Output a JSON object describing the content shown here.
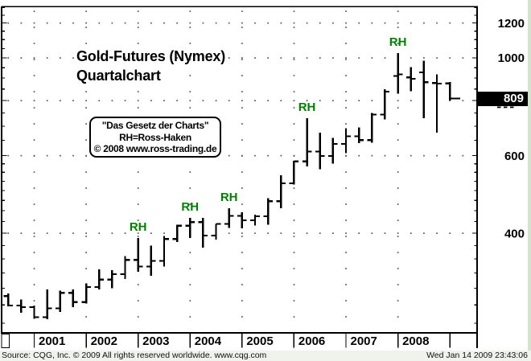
{
  "title": {
    "line1": "Gold-Futures (Nymex)",
    "line2": "Quartalchart"
  },
  "info_box": {
    "line1": "\"Das Gesetz der Charts\"",
    "line2": "RH=Ross-Haken",
    "line3": "© 2008 www.ross-trading.de"
  },
  "price_box": {
    "value": "809",
    "bg": "#000000",
    "fg": "#ffffff"
  },
  "footer": {
    "source": "Source: CQG, Inc. © 2009 All rights reserved worldwide. www.cqg.com",
    "timestamp": "Wed Jan 14 2009 23:43:06"
  },
  "colors": {
    "bar": "#000000",
    "ross_hook_label": "#008000",
    "axis": "#000000",
    "grid_dot": "#555555",
    "footer_bg": "#eff3ec",
    "edge_strip": "#d5e3cf"
  },
  "chart_data": {
    "type": "ohlc-bar",
    "title": "Gold-Futures (Nymex) Quartalchart",
    "timeframe": "quarterly",
    "y_scale": "log",
    "grid": "dotted",
    "legend_position": "none",
    "ross_hook_marker": "RH",
    "last_price": 809,
    "y_axis_labels": [
      1200,
      1000,
      600,
      400
    ],
    "x_axis_years": [
      "2001",
      "2002",
      "2003",
      "2004",
      "2005",
      "2006",
      "2007",
      "2008"
    ],
    "bars": [
      {
        "period": "2000-Q3",
        "open": 288,
        "high": 292,
        "low": 273,
        "close": 274,
        "ross_hook": false
      },
      {
        "period": "2000-Q4",
        "open": 274,
        "high": 283,
        "low": 264,
        "close": 272,
        "ross_hook": false
      },
      {
        "period": "2001-Q1",
        "open": 272,
        "high": 274,
        "low": 256,
        "close": 258,
        "ross_hook": false
      },
      {
        "period": "2001-Q2",
        "open": 258,
        "high": 298,
        "low": 255,
        "close": 270,
        "ross_hook": false
      },
      {
        "period": "2001-Q3",
        "open": 270,
        "high": 296,
        "low": 265,
        "close": 293,
        "ross_hook": false
      },
      {
        "period": "2001-Q4",
        "open": 293,
        "high": 298,
        "low": 272,
        "close": 279,
        "ross_hook": false
      },
      {
        "period": "2002-Q1",
        "open": 279,
        "high": 308,
        "low": 277,
        "close": 302,
        "ross_hook": false
      },
      {
        "period": "2002-Q2",
        "open": 302,
        "high": 331,
        "low": 298,
        "close": 314,
        "ross_hook": false
      },
      {
        "period": "2002-Q3",
        "open": 314,
        "high": 330,
        "low": 300,
        "close": 323,
        "ross_hook": false
      },
      {
        "period": "2002-Q4",
        "open": 323,
        "high": 355,
        "low": 315,
        "close": 348,
        "ross_hook": false
      },
      {
        "period": "2003-Q1",
        "open": 348,
        "high": 390,
        "low": 327,
        "close": 336,
        "ross_hook": true
      },
      {
        "period": "2003-Q2",
        "open": 336,
        "high": 375,
        "low": 320,
        "close": 346,
        "ross_hook": false
      },
      {
        "period": "2003-Q3",
        "open": 346,
        "high": 394,
        "low": 336,
        "close": 388,
        "ross_hook": false
      },
      {
        "period": "2003-Q4",
        "open": 388,
        "high": 418,
        "low": 382,
        "close": 416,
        "ross_hook": false
      },
      {
        "period": "2004-Q1",
        "open": 416,
        "high": 433,
        "low": 390,
        "close": 424,
        "ross_hook": true
      },
      {
        "period": "2004-Q2",
        "open": 424,
        "high": 433,
        "low": 371,
        "close": 395,
        "ross_hook": false
      },
      {
        "period": "2004-Q3",
        "open": 395,
        "high": 420,
        "low": 387,
        "close": 420,
        "ross_hook": false
      },
      {
        "period": "2004-Q4",
        "open": 420,
        "high": 456,
        "low": 411,
        "close": 438,
        "ross_hook": true
      },
      {
        "period": "2005-Q1",
        "open": 438,
        "high": 446,
        "low": 410,
        "close": 428,
        "ross_hook": false
      },
      {
        "period": "2005-Q2",
        "open": 428,
        "high": 441,
        "low": 416,
        "close": 437,
        "ross_hook": false
      },
      {
        "period": "2005-Q3",
        "open": 437,
        "high": 480,
        "low": 418,
        "close": 473,
        "ross_hook": false
      },
      {
        "period": "2005-Q4",
        "open": 473,
        "high": 541,
        "low": 456,
        "close": 519,
        "ross_hook": false
      },
      {
        "period": "2006-Q1",
        "open": 519,
        "high": 584,
        "low": 516,
        "close": 582,
        "ross_hook": false
      },
      {
        "period": "2006-Q2",
        "open": 582,
        "high": 730,
        "low": 567,
        "close": 613,
        "ross_hook": true
      },
      {
        "period": "2006-Q3",
        "open": 613,
        "high": 676,
        "low": 559,
        "close": 599,
        "ross_hook": false
      },
      {
        "period": "2006-Q4",
        "open": 599,
        "high": 658,
        "low": 576,
        "close": 638,
        "ross_hook": false
      },
      {
        "period": "2007-Q1",
        "open": 638,
        "high": 692,
        "low": 608,
        "close": 664,
        "ross_hook": false
      },
      {
        "period": "2007-Q2",
        "open": 664,
        "high": 695,
        "low": 640,
        "close": 651,
        "ross_hook": false
      },
      {
        "period": "2007-Q3",
        "open": 651,
        "high": 750,
        "low": 642,
        "close": 744,
        "ross_hook": false
      },
      {
        "period": "2007-Q4",
        "open": 744,
        "high": 848,
        "low": 725,
        "close": 838,
        "ross_hook": false
      },
      {
        "period": "2008-Q1",
        "open": 910,
        "high": 1025,
        "low": 830,
        "close": 917,
        "ross_hook": true
      },
      {
        "period": "2008-Q2",
        "open": 903,
        "high": 952,
        "low": 840,
        "close": 897,
        "ross_hook": false
      },
      {
        "period": "2008-Q3",
        "open": 927,
        "high": 986,
        "low": 729,
        "close": 881,
        "ross_hook": false
      },
      {
        "period": "2008-Q4",
        "open": 877,
        "high": 918,
        "low": 676,
        "close": 874,
        "ross_hook": false
      },
      {
        "period": "2009-Q1",
        "open": 875,
        "high": 882,
        "low": 800,
        "close": 809,
        "ross_hook": false
      }
    ]
  }
}
